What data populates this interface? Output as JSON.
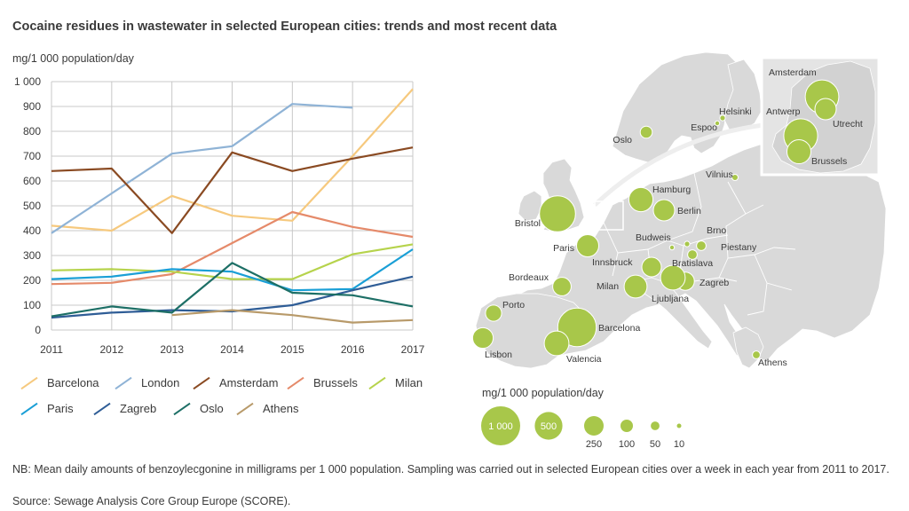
{
  "title": "Cocaine residues in wastewater in selected European cities: trends and most recent data",
  "colors": {
    "grid": "#c8c8c8",
    "axis_text": "#3a3a3a",
    "map_land": "#d9d9d9",
    "map_border": "#ffffff",
    "bubble": "#a8c74a",
    "bubble_edge": "#ffffff"
  },
  "chart_data": [
    {
      "type": "line",
      "title": "",
      "ylabel": "mg/1 000 population/day",
      "xlabel": "",
      "x": [
        2011,
        2012,
        2013,
        2014,
        2015,
        2016,
        2017
      ],
      "ylim": [
        0,
        1000
      ],
      "yticks": [
        0,
        100,
        200,
        300,
        400,
        500,
        600,
        700,
        800,
        900,
        1000
      ],
      "ytick_labels": [
        "0",
        "100",
        "200",
        "300",
        "400",
        "500",
        "600",
        "700",
        "800",
        "900",
        "1 000"
      ],
      "xtick_labels": [
        "2011",
        "2012",
        "2013",
        "2014",
        "2015",
        "2016",
        "2017"
      ],
      "grid": true,
      "series": [
        {
          "name": "Barcelona",
          "color": "#f6c97e",
          "values": [
            420,
            400,
            540,
            460,
            440,
            700,
            970
          ]
        },
        {
          "name": "London",
          "color": "#8fb3d6",
          "values": [
            390,
            550,
            710,
            740,
            910,
            895,
            null
          ]
        },
        {
          "name": "Amsterdam",
          "color": "#8a4a22",
          "values": [
            640,
            650,
            390,
            715,
            640,
            690,
            735
          ]
        },
        {
          "name": "Brussels",
          "color": "#e58a6a",
          "values": [
            185,
            190,
            225,
            350,
            475,
            415,
            375
          ]
        },
        {
          "name": "Milan",
          "color": "#b6d34c",
          "values": [
            240,
            245,
            235,
            205,
            205,
            305,
            345
          ]
        },
        {
          "name": "Paris",
          "color": "#1a9fd6",
          "values": [
            205,
            215,
            245,
            235,
            160,
            165,
            325
          ]
        },
        {
          "name": "Zagreb",
          "color": "#2f5d96",
          "values": [
            50,
            70,
            80,
            75,
            100,
            160,
            215
          ]
        },
        {
          "name": "Oslo",
          "color": "#1d6f66",
          "values": [
            55,
            95,
            70,
            270,
            150,
            140,
            95
          ]
        },
        {
          "name": "Athens",
          "color": "#b89a6a",
          "values": [
            null,
            null,
            60,
            80,
            60,
            30,
            40
          ]
        }
      ]
    },
    {
      "type": "bubble-map",
      "title": "",
      "size_legend_title": "mg/1 000 population/day",
      "size_legend": [
        {
          "label": "1 000",
          "value": 1000,
          "label_inside": true
        },
        {
          "label": "500",
          "value": 500,
          "label_inside": true
        },
        {
          "label": "250",
          "value": 250,
          "label_inside": false
        },
        {
          "label": "100",
          "value": 100,
          "label_inside": false
        },
        {
          "label": "50",
          "value": 50,
          "label_inside": false
        },
        {
          "label": "10",
          "value": 10,
          "label_inside": false
        }
      ],
      "cities": [
        {
          "name": "Oslo",
          "value": 95
        },
        {
          "name": "Helsinki",
          "value": 20
        },
        {
          "name": "Espoo",
          "value": 15
        },
        {
          "name": "Vilnius",
          "value": 25
        },
        {
          "name": "Bristol",
          "value": 850
        },
        {
          "name": "Hamburg",
          "value": 380
        },
        {
          "name": "Berlin",
          "value": 300
        },
        {
          "name": "Paris",
          "value": 325
        },
        {
          "name": "Budweis",
          "value": 15
        },
        {
          "name": "Brno",
          "value": 20
        },
        {
          "name": "Piestany",
          "value": 60
        },
        {
          "name": "Bratislava",
          "value": 60
        },
        {
          "name": "Innsbruck",
          "value": 250
        },
        {
          "name": "Bordeaux",
          "value": 225
        },
        {
          "name": "Milan",
          "value": 345
        },
        {
          "name": "Zagreb",
          "value": 215
        },
        {
          "name": "Ljubljana",
          "value": 400
        },
        {
          "name": "Porto",
          "value": 170
        },
        {
          "name": "Barcelona",
          "value": 970
        },
        {
          "name": "Lisbon",
          "value": 280
        },
        {
          "name": "Valencia",
          "value": 400
        },
        {
          "name": "Athens",
          "value": 40
        },
        {
          "name": "Amsterdam",
          "value": 735
        },
        {
          "name": "Utrecht",
          "value": 300
        },
        {
          "name": "Antwerp",
          "value": 750
        },
        {
          "name": "Brussels",
          "value": 375
        }
      ]
    }
  ],
  "footnote": "NB: Mean daily amounts of benzoylecgonine in milligrams per 1 000 population. Sampling was carried out in selected European cities over a week in each year from 2011 to 2017.",
  "source": "Source: Sewage Analysis Core Group Europe (SCORE)."
}
